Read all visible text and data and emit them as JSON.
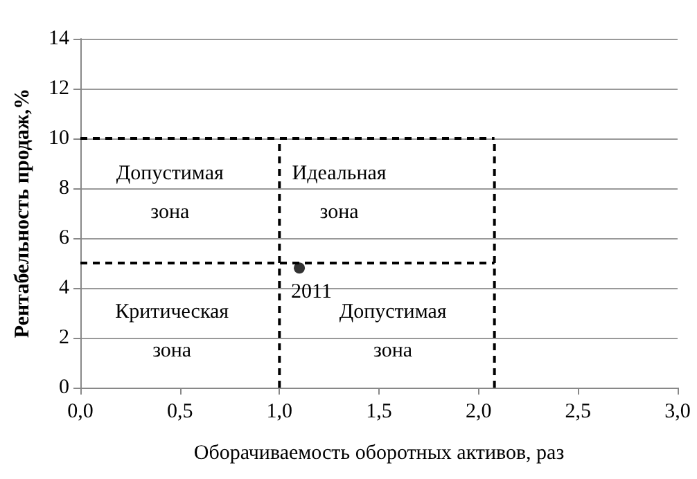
{
  "chart_data": {
    "type": "scatter",
    "xlabel": "Оборачиваемость оборотных активов, раз",
    "ylabel": "Рентабельность продаж,%",
    "xlim": [
      0,
      3
    ],
    "ylim": [
      0,
      14
    ],
    "xticks": [
      {
        "value": 0,
        "label": "0,0"
      },
      {
        "value": 0.5,
        "label": "0,5"
      },
      {
        "value": 1,
        "label": "1,0"
      },
      {
        "value": 1.5,
        "label": "1,5"
      },
      {
        "value": 2,
        "label": "2,0"
      },
      {
        "value": 2.5,
        "label": "2,5"
      },
      {
        "value": 3,
        "label": "3,0"
      }
    ],
    "yticks": [
      0,
      2,
      4,
      6,
      8,
      10,
      12,
      14
    ],
    "grid": "y",
    "series": [
      {
        "color": "#000000",
        "marker": "circle",
        "x": [
          1.1
        ],
        "values": [
          4.8
        ]
      },
      {
        "type": "line",
        "color": "#000000",
        "marker": "none",
        "line_style": "dashed",
        "x": [
          0,
          2.08
        ],
        "values": [
          10,
          10
        ]
      },
      {
        "type": "line",
        "color": "#000000",
        "marker": "none",
        "line_style": "dashed",
        "x": [
          0,
          2.08
        ],
        "values": [
          5,
          5
        ]
      },
      {
        "type": "line",
        "color": "#000000",
        "marker": "none",
        "line_style": "dashed",
        "x": [
          1,
          1
        ],
        "values": [
          0,
          10
        ]
      },
      {
        "type": "line",
        "color": "#000000",
        "marker": "none",
        "line_style": "dashed",
        "x": [
          2.08,
          2.08
        ],
        "values": [
          0,
          10
        ]
      }
    ],
    "annotations": [
      {
        "text": "2011",
        "x": 1.1,
        "y": 4.8
      },
      "Допустимая\nзона",
      "Идеальная\nзона",
      "Критическая\nзона",
      "Допустимая\nзона"
    ]
  }
}
